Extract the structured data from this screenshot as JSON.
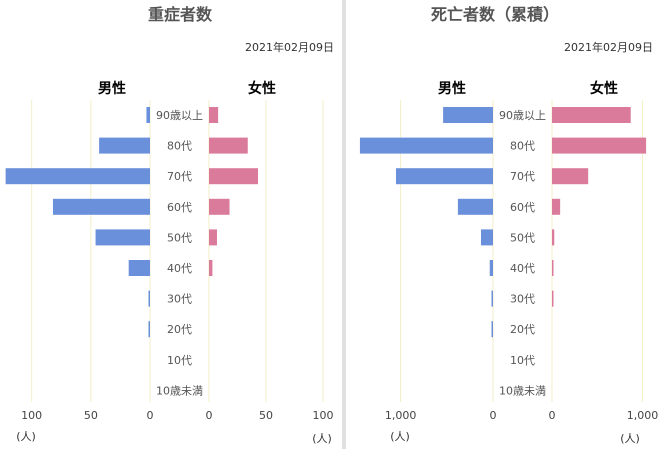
{
  "colors": {
    "male": "#6a8fdb",
    "female": "#db7b9b",
    "grid": "#f3efc8",
    "divider": "#e1e1e1"
  },
  "chart_data": [
    {
      "type": "bar",
      "orientation": "horizontal-population-pyramid",
      "title": "重症者数",
      "date": "2021年02月09日",
      "left_label": "男性",
      "right_label": "女性",
      "unit": "(人)",
      "categories": [
        "90歳以上",
        "80代",
        "70代",
        "60代",
        "50代",
        "40代",
        "30代",
        "20代",
        "10代",
        "10歳未満"
      ],
      "series": [
        {
          "name": "男性",
          "side": "left",
          "values": [
            3,
            43,
            122,
            82,
            46,
            18,
            1,
            1,
            0,
            0
          ]
        },
        {
          "name": "女性",
          "side": "right",
          "values": [
            8,
            34,
            43,
            18,
            7,
            3,
            0,
            0,
            0,
            0
          ]
        }
      ],
      "xlim_left": [
        0,
        120
      ],
      "xlim_right": [
        0,
        100
      ],
      "ticks_left": [
        100,
        50,
        0
      ],
      "tick_labels_left": [
        "100",
        "50",
        "0"
      ],
      "ticks_right": [
        0,
        50,
        100
      ],
      "tick_labels_right": [
        "0",
        "50",
        "100"
      ],
      "grid": true
    },
    {
      "type": "bar",
      "orientation": "horizontal-population-pyramid",
      "title": "死亡者数（累積）",
      "date": "2021年02月09日",
      "left_label": "男性",
      "right_label": "女性",
      "unit": "(人)",
      "categories": [
        "90歳以上",
        "80代",
        "70代",
        "60代",
        "50代",
        "40代",
        "30代",
        "20代",
        "10代",
        "10歳未満"
      ],
      "series": [
        {
          "name": "男性",
          "side": "left",
          "values": [
            540,
            1440,
            1050,
            380,
            130,
            35,
            5,
            2,
            0,
            0
          ]
        },
        {
          "name": "女性",
          "side": "right",
          "values": [
            870,
            1040,
            400,
            90,
            25,
            12,
            2,
            0,
            0,
            0
          ]
        }
      ],
      "xlim_left": [
        0,
        1450
      ],
      "xlim_right": [
        0,
        1050
      ],
      "ticks_left": [
        1000,
        0
      ],
      "tick_labels_left": [
        "1,000",
        "0"
      ],
      "ticks_right": [
        0,
        1000
      ],
      "tick_labels_right": [
        "0",
        "1,000"
      ],
      "grid": true
    }
  ]
}
